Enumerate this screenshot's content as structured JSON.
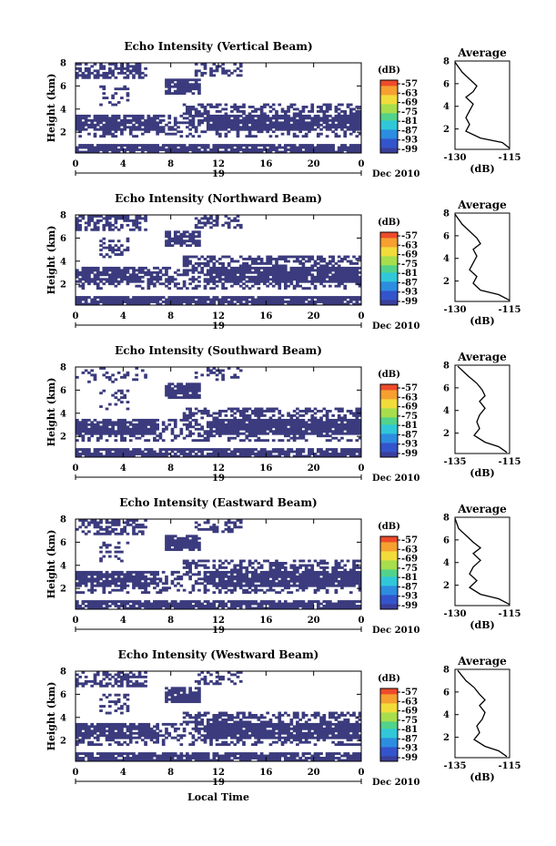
{
  "figure": {
    "xlabel": "Local Time",
    "colorbar_unit": "(dB)",
    "colorbar_ticks": [
      "-57",
      "-63",
      "-69",
      "-75",
      "-81",
      "-87",
      "-93",
      "-99"
    ],
    "date_day": "19",
    "date_label": "Dec 2010",
    "avg_title": "Average",
    "avg_xlabel": "(dB)",
    "colors": {
      "echo": "#3b3b7e",
      "background": "#ffffff"
    }
  },
  "chart_data": [
    {
      "type": "heatmap",
      "title": "Echo Intensity (Vertical Beam)",
      "ylabel": "Height (km)",
      "x_ticks": [
        "0",
        "4",
        "8",
        "12",
        "16",
        "20",
        "0"
      ],
      "y_ticks": [
        "2",
        "4",
        "6",
        "8"
      ],
      "xlim": [
        0,
        24
      ],
      "ylim": [
        0.2,
        8
      ],
      "avg_profile": {
        "xlim": [
          -130,
          -115
        ],
        "x_ticks": [
          "-130",
          "-115"
        ],
        "y_ticks": [
          "2",
          "4",
          "6",
          "8"
        ],
        "x": [
          -115,
          -117,
          -123,
          -127,
          -126,
          -127,
          -126,
          -125,
          -127,
          -125,
          -124,
          -126,
          -128,
          -131
        ],
        "y": [
          0.3,
          0.8,
          1.2,
          1.8,
          2.4,
          3.0,
          3.6,
          4.2,
          4.8,
          5.3,
          5.8,
          6.4,
          7.0,
          7.9
        ]
      }
    },
    {
      "type": "heatmap",
      "title": "Echo Intensity (Northward Beam)",
      "ylabel": "Height (km)",
      "x_ticks": [
        "0",
        "4",
        "8",
        "12",
        "16",
        "20",
        "0"
      ],
      "y_ticks": [
        "2",
        "4",
        "6",
        "8"
      ],
      "xlim": [
        0,
        24
      ],
      "ylim": [
        0.2,
        8
      ],
      "avg_profile": {
        "xlim": [
          -130,
          -115
        ],
        "x_ticks": [
          "-130",
          "-115"
        ],
        "y_ticks": [
          "2",
          "4",
          "6",
          "8"
        ],
        "x": [
          -115,
          -118,
          -123,
          -125,
          -124,
          -126,
          -125,
          -124,
          -125,
          -123,
          -124,
          -126,
          -128,
          -131
        ],
        "y": [
          0.3,
          0.8,
          1.2,
          1.8,
          2.4,
          3.0,
          3.6,
          4.2,
          4.8,
          5.3,
          5.8,
          6.4,
          7.0,
          7.9
        ]
      }
    },
    {
      "type": "heatmap",
      "title": "Echo Intensity (Southward Beam)",
      "ylabel": "Height (km)",
      "x_ticks": [
        "0",
        "4",
        "8",
        "12",
        "16",
        "20",
        "0"
      ],
      "y_ticks": [
        "2",
        "4",
        "6",
        "8"
      ],
      "xlim": [
        0,
        24
      ],
      "ylim": [
        0.2,
        8
      ],
      "avg_profile": {
        "xlim": [
          -135,
          -115
        ],
        "x_ticks": [
          "-135",
          "-115"
        ],
        "y_ticks": [
          "2",
          "4",
          "6",
          "8"
        ],
        "x": [
          -116,
          -119,
          -124,
          -128,
          -126,
          -127,
          -126,
          -124,
          -126,
          -124,
          -125,
          -127,
          -130,
          -134
        ],
        "y": [
          0.3,
          0.8,
          1.2,
          1.8,
          2.4,
          3.0,
          3.6,
          4.2,
          4.8,
          5.3,
          5.8,
          6.4,
          7.0,
          7.9
        ]
      }
    },
    {
      "type": "heatmap",
      "title": "Echo Intensity (Eastward Beam)",
      "ylabel": "Height (km)",
      "x_ticks": [
        "0",
        "4",
        "8",
        "12",
        "16",
        "20",
        "0"
      ],
      "y_ticks": [
        "2",
        "4",
        "6",
        "8"
      ],
      "xlim": [
        0,
        24
      ],
      "ylim": [
        0.2,
        8
      ],
      "avg_profile": {
        "xlim": [
          -130,
          -115
        ],
        "x_ticks": [
          "-130",
          "-115"
        ],
        "y_ticks": [
          "2",
          "4",
          "6",
          "8"
        ],
        "x": [
          -115,
          -118,
          -123,
          -126,
          -124,
          -126,
          -125,
          -123,
          -125,
          -123,
          -125,
          -127,
          -129,
          -131
        ],
        "y": [
          0.3,
          0.8,
          1.2,
          1.8,
          2.4,
          3.0,
          3.6,
          4.2,
          4.8,
          5.3,
          5.8,
          6.4,
          7.0,
          7.9
        ]
      }
    },
    {
      "type": "heatmap",
      "title": "Echo Intensity (Westward Beam)",
      "ylabel": "Height (km)",
      "x_ticks": [
        "0",
        "4",
        "8",
        "12",
        "16",
        "20",
        "0"
      ],
      "y_ticks": [
        "2",
        "4",
        "6",
        "8"
      ],
      "xlim": [
        0,
        24
      ],
      "ylim": [
        0.2,
        8
      ],
      "avg_profile": {
        "xlim": [
          -135,
          -115
        ],
        "x_ticks": [
          "-135",
          "-115"
        ],
        "y_ticks": [
          "2",
          "4",
          "6",
          "8"
        ],
        "x": [
          -116,
          -119,
          -124,
          -128,
          -126,
          -127,
          -125,
          -124,
          -126,
          -124,
          -126,
          -128,
          -131,
          -134
        ],
        "y": [
          0.3,
          0.8,
          1.2,
          1.8,
          2.4,
          3.0,
          3.6,
          4.2,
          4.8,
          5.3,
          5.8,
          6.4,
          7.0,
          7.9
        ]
      }
    }
  ]
}
